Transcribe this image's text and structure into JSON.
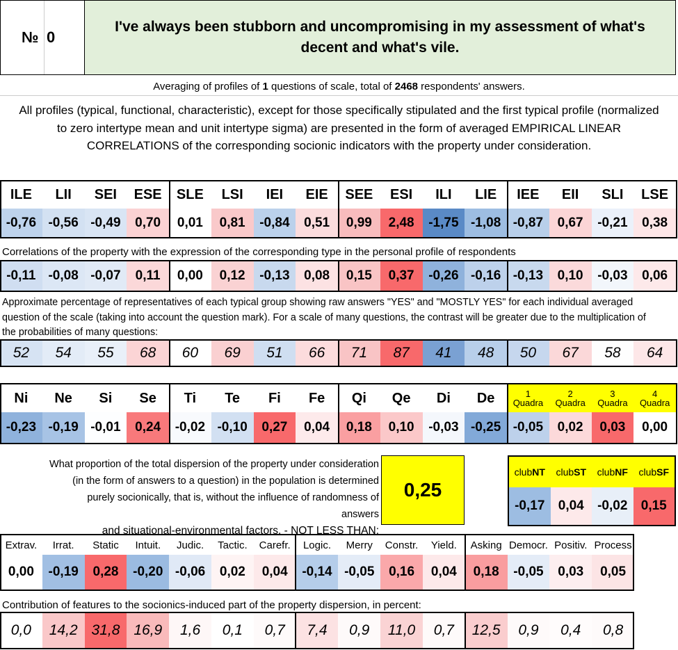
{
  "header": {
    "number_label": "№",
    "number": "0",
    "title": "I've always been stubborn and uncompromising in my assessment of what's decent and what's vile."
  },
  "averaging": {
    "prefix": "Averaging of profiles of ",
    "questions": "1",
    "middle": " questions of scale, total of ",
    "respondents": "2468",
    "suffix": " respondents' answers."
  },
  "note": "All profiles (typical, functional, characteristic), except for those specifically stipulated and the first typical profile (normalized to zero intertype mean and unit intertype sigma) are presented in the form of averaged EMPIRICAL LINEAR CORRELATIONS of the corresponding socionic indicators with the property under consideration.",
  "types": {
    "headers": [
      "ILE",
      "LII",
      "SEI",
      "ESE",
      "SLE",
      "LSI",
      "IEI",
      "EIE",
      "SEE",
      "ESI",
      "ILI",
      "LIE",
      "IEE",
      "EII",
      "SLI",
      "LSE"
    ],
    "profile": [
      "-0,76",
      "-0,56",
      "-0,49",
      "0,70",
      "0,01",
      "0,81",
      "-0,84",
      "0,51",
      "0,99",
      "2,48",
      "-1,75",
      "-1,08",
      "-0,87",
      "0,67",
      "-0,21",
      "0,38"
    ],
    "profile_colors": [
      "#bed3ec",
      "#d3e1f2",
      "#d9e5f4",
      "#fbd2d3",
      "#ffffff",
      "#f9c9ca",
      "#bbd1eb",
      "#fbdcdd",
      "#f8bcbd",
      "#f8696b",
      "#5a8ac6",
      "#9dbde2",
      "#b8cfea",
      "#fbd5d6",
      "#ebf1fa",
      "#fde6e7"
    ],
    "corr_caption": "Correlations of the property with the expression of the corresponding type in the personal profile of respondents",
    "corr": [
      "-0,11",
      "-0,08",
      "-0,07",
      "0,11",
      "0,00",
      "0,12",
      "-0,13",
      "0,08",
      "0,15",
      "0,37",
      "-0,26",
      "-0,16",
      "-0,13",
      "0,10",
      "-0,03",
      "0,06"
    ],
    "corr_colors": [
      "#d0def1",
      "#dce7f5",
      "#e1eaf6",
      "#fbd8d9",
      "#ffffff",
      "#fad2d3",
      "#c8d9ee",
      "#fce2e3",
      "#f9c4c5",
      "#f8696b",
      "#8fb2dc",
      "#bdd1eb",
      "#c8d9ee",
      "#fbdadb",
      "#f2f6fb",
      "#fde9ea"
    ],
    "pct_caption": "Approximate percentage of representatives of each typical group showing raw answers \"YES\" and \"MOSTLY YES\" for each individual averaged question of the scale (taking into account the question mark). For a scale of many questions, the contrast will be greater due to the multiplication of the probabilities of many questions:",
    "pct": [
      "52",
      "54",
      "55",
      "68",
      "60",
      "69",
      "51",
      "66",
      "71",
      "87",
      "41",
      "48",
      "50",
      "67",
      "58",
      "64"
    ],
    "pct_colors": [
      "#d6e3f3",
      "#e3ecf7",
      "#e9f0f9",
      "#fbd4d5",
      "#ffffff",
      "#fad0d1",
      "#cfdef1",
      "#fcdcdd",
      "#f9c4c5",
      "#f8696b",
      "#7aa1d3",
      "#b8cfea",
      "#c6d7ee",
      "#fbd8d9",
      "#fefefe",
      "#fde7e8"
    ]
  },
  "functions": {
    "headers": [
      "Ni",
      "Ne",
      "Si",
      "Se",
      "Ti",
      "Te",
      "Fi",
      "Fe",
      "Qi",
      "Qe",
      "Di",
      "De"
    ],
    "values": [
      "-0,23",
      "-0,19",
      "-0,01",
      "0,24",
      "-0,02",
      "-0,10",
      "0,27",
      "0,04",
      "0,18",
      "0,10",
      "-0,03",
      "-0,25"
    ],
    "colors": [
      "#8fb2dc",
      "#a7c3e5",
      "#fdfeff",
      "#f8797b",
      "#f8fafd",
      "#d2e0f2",
      "#f8696b",
      "#fdeaeb",
      "#fa9fa1",
      "#fbc8c9",
      "#f4f7fc",
      "#82a9d8"
    ],
    "quadra_word": "Quadra",
    "quadras": [
      "1",
      "2",
      "3",
      "4"
    ],
    "quadra_values": [
      "-0,05",
      "0,02",
      "0,03",
      "0,00"
    ],
    "quadra_colors": [
      "#bdd1eb",
      "#fcd9da",
      "#f8696b",
      "#ffffff"
    ],
    "quadra_header_color": "#ffff00"
  },
  "proportion": {
    "text": [
      "What proportion of the total dispersion of the property under consideration",
      "(in the form of answers to a question) in the population is determined",
      "purely socionically, that is, without the influence of randomness of answers",
      "and situational-environmental factors. - NOT LESS THAN:"
    ],
    "value": "0,25"
  },
  "clubs": {
    "prefix": "club",
    "names": [
      "NT",
      "ST",
      "NF",
      "SF"
    ],
    "values": [
      "-0,17",
      "0,04",
      "-0,02",
      "0,15"
    ],
    "colors": [
      "#9dbde2",
      "#fde9ea",
      "#e8eff8",
      "#f8696b"
    ],
    "header_color": "#ffff00"
  },
  "features": {
    "headers": [
      "Extrav.",
      "Irrat.",
      "Static",
      "Intuit.",
      "Judic.",
      "Tactic.",
      "Carefr.",
      "Logic.",
      "Merry",
      "Constr.",
      "Yield.",
      "Asking",
      "Democr.",
      "Positiv.",
      "Process"
    ],
    "values": [
      "0,00",
      "-0,19",
      "0,28",
      "-0,20",
      "-0,06",
      "0,02",
      "0,04",
      "-0,14",
      "-0,05",
      "0,16",
      "0,04",
      "0,18",
      "-0,05",
      "0,03",
      "0,05"
    ],
    "colors": [
      "#ffffff",
      "#a1bfe3",
      "#f8696b",
      "#9bbbe1",
      "#e0e9f6",
      "#fef4f4",
      "#fde9ea",
      "#b5cdea",
      "#e4ecf7",
      "#faa8aa",
      "#fde9ea",
      "#f99d9f",
      "#e4ecf7",
      "#fdeeef",
      "#fce4e5"
    ],
    "contrib_caption": "Contribution of features to the sociоnics-induced part of the property dispersion, in percent:",
    "contrib": [
      "0,0",
      "14,2",
      "31,8",
      "16,9",
      "1,6",
      "0,1",
      "0,7",
      "7,4",
      "0,9",
      "11,0",
      "0,7",
      "12,5",
      "0,9",
      "0,4",
      "0,8"
    ],
    "contrib_colors": [
      "#ffffff",
      "#fac8c9",
      "#f8696b",
      "#f9babb",
      "#fef7f7",
      "#ffffff",
      "#fefafa",
      "#fce2e3",
      "#fefafa",
      "#fad3d4",
      "#fefafa",
      "#facdce",
      "#fefafa",
      "#fffcfc",
      "#fefafa"
    ]
  }
}
